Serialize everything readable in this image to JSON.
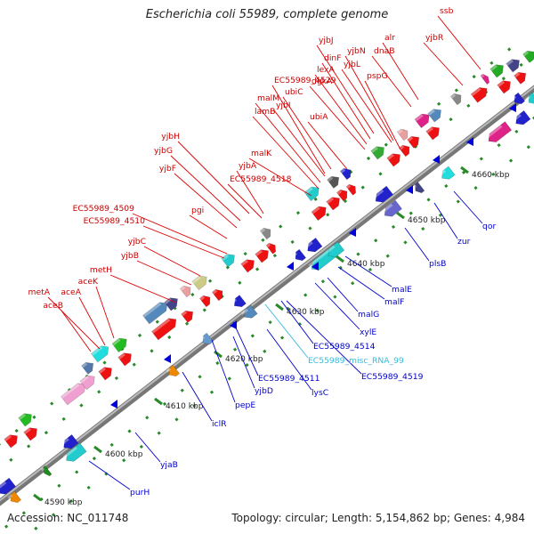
{
  "title": "Escherichia coli 55989, complete genome",
  "footer": {
    "accession": "Accession: NC_011748",
    "topology": "Topology: circular; Length: 5,154,862 bp; Genes: 4,984"
  },
  "colors": {
    "forward_label": "#cc0000",
    "reverse_label": "#0000cc",
    "rna_label": "#33bbdd",
    "backbone": "#888888"
  },
  "scale": [
    {
      "label": "4590 kbp"
    },
    {
      "label": "4600 kbp"
    },
    {
      "label": "4610 kbp"
    },
    {
      "label": "4620 kbp"
    },
    {
      "label": "4630 kbp"
    },
    {
      "label": "4640 kbp"
    },
    {
      "label": "4650 kbp"
    },
    {
      "label": "4660 kbp"
    }
  ],
  "forward_labels": [
    {
      "name": "ssb"
    },
    {
      "name": "yjbR"
    },
    {
      "name": "alr"
    },
    {
      "name": "dnaB"
    },
    {
      "name": "yjbJ"
    },
    {
      "name": "yjbN"
    },
    {
      "name": "dinF"
    },
    {
      "name": "yjbL"
    },
    {
      "name": "pspG"
    },
    {
      "name": "lexA"
    },
    {
      "name": "dgkA"
    },
    {
      "name": "EC55989_4529"
    },
    {
      "name": "ubiC"
    },
    {
      "name": "malM"
    },
    {
      "name": "yjbI"
    },
    {
      "name": "ubiA"
    },
    {
      "name": "lamB"
    },
    {
      "name": "yjbH"
    },
    {
      "name": "malK"
    },
    {
      "name": "yjbG"
    },
    {
      "name": "yjbF"
    },
    {
      "name": "yjbA"
    },
    {
      "name": "EC55989_4518"
    },
    {
      "name": "EC55989_4509"
    },
    {
      "name": "EC55989_4510"
    },
    {
      "name": "pgi"
    },
    {
      "name": "yjbC"
    },
    {
      "name": "yjbB"
    },
    {
      "name": "metH"
    },
    {
      "name": "aceK"
    },
    {
      "name": "metA"
    },
    {
      "name": "aceA"
    },
    {
      "name": "aceB"
    }
  ],
  "reverse_labels": [
    {
      "name": "qor"
    },
    {
      "name": "zur"
    },
    {
      "name": "plsB"
    },
    {
      "name": "malE"
    },
    {
      "name": "malF"
    },
    {
      "name": "malG"
    },
    {
      "name": "xylE"
    },
    {
      "name": "EC55989_4514"
    },
    {
      "name": "EC55989_misc_RNA_99",
      "rna": true
    },
    {
      "name": "EC55989_4519"
    },
    {
      "name": "EC55989_4511"
    },
    {
      "name": "lysC"
    },
    {
      "name": "yjbD"
    },
    {
      "name": "pepE"
    },
    {
      "name": "iclR"
    },
    {
      "name": "yjaB"
    },
    {
      "name": "purH"
    }
  ]
}
